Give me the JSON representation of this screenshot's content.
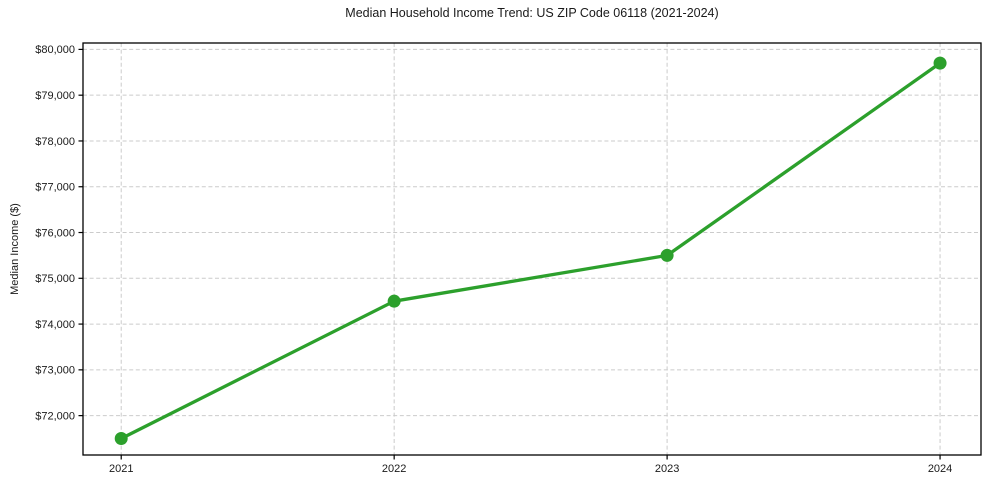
{
  "chart_data": {
    "type": "line",
    "title": "Median Household Income Trend: US ZIP Code 06118 (2021-2024)",
    "xlabel": "",
    "ylabel": "Median Income ($)",
    "categories": [
      "2021",
      "2022",
      "2023",
      "2024"
    ],
    "x": [
      2021,
      2022,
      2023,
      2024
    ],
    "series": [
      {
        "name": "Median Household Income",
        "values": [
          71500,
          74500,
          75500,
          79700
        ]
      }
    ],
    "y_ticks": {
      "values": [
        72000,
        73000,
        74000,
        75000,
        76000,
        77000,
        78000,
        79000,
        80000
      ],
      "labels": [
        "$72,000",
        "$73,000",
        "$74,000",
        "$75,000",
        "$76,000",
        "$77,000",
        "$78,000",
        "$79,000",
        "$80,000"
      ]
    },
    "xlim": [
      2020.86,
      2024.15
    ],
    "ylim": [
      71140,
      80140
    ],
    "grid": true,
    "grid_style": "dashed",
    "legend": "none",
    "marker": "circle",
    "colors": {
      "line": "#2ca02c",
      "marker": "#2ca02c",
      "grid": "#cbcbcb",
      "spine": "#000000",
      "text": "#1a1a1a",
      "background": "#ffffff"
    }
  }
}
